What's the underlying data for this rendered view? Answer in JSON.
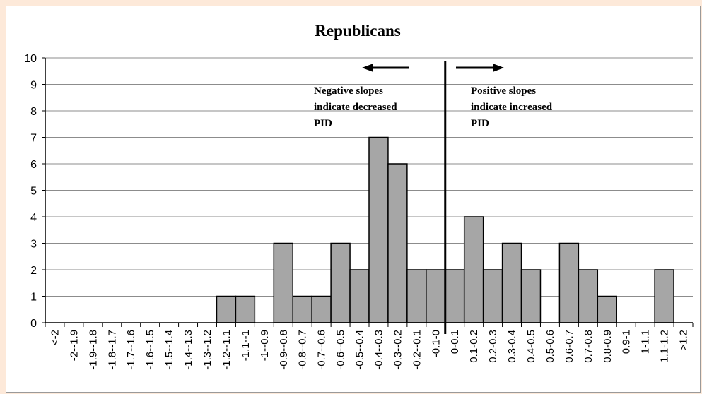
{
  "chart_data": {
    "type": "bar",
    "title": "Republicans",
    "xlabel": "",
    "ylabel": "",
    "ylim": [
      0,
      10
    ],
    "yticks": [
      0,
      1,
      2,
      3,
      4,
      5,
      6,
      7,
      8,
      9,
      10
    ],
    "grid": "horizontal",
    "categories": [
      "<-2",
      "-2--1.9",
      "-1.9--1.8",
      "-1.8--1.7",
      "-1.7--1.6",
      "-1.6--1.5",
      "-1.5--1.4",
      "-1.4--1.3",
      "-1.3--1.2",
      "-1.2--1.1",
      "-1.1--1",
      "-1--0.9",
      "-0.9--0.8",
      "-0.8--0.7",
      "-0.7--0.6",
      "-0.6--0.5",
      "-0.5--0.4",
      "-0.4--0.3",
      "-0.3--0.2",
      "-0.2--0.1",
      "-0.1-0",
      "0-0.1",
      "0.1-0.2",
      "0.2-0.3",
      "0.3-0.4",
      "0.4-0.5",
      "0.5-0.6",
      "0.6-0.7",
      "0.7-0.8",
      "0.8-0.9",
      "0.9-1",
      "1-1.1",
      "1.1-1.2",
      ">1.2"
    ],
    "values": [
      0,
      0,
      0,
      0,
      0,
      0,
      0,
      0,
      0,
      1,
      1,
      0,
      3,
      1,
      1,
      3,
      2,
      7,
      6,
      2,
      2,
      2,
      4,
      2,
      3,
      2,
      0,
      3,
      2,
      1,
      0,
      0,
      2,
      0
    ],
    "bar_color": "#a6a6a6",
    "divider_at_x": 0,
    "annotations": {
      "negative": [
        "Negative slopes",
        "indicate decreased",
        "PID"
      ],
      "positive": [
        "Positive slopes",
        "indicate increased",
        "PID"
      ]
    }
  }
}
